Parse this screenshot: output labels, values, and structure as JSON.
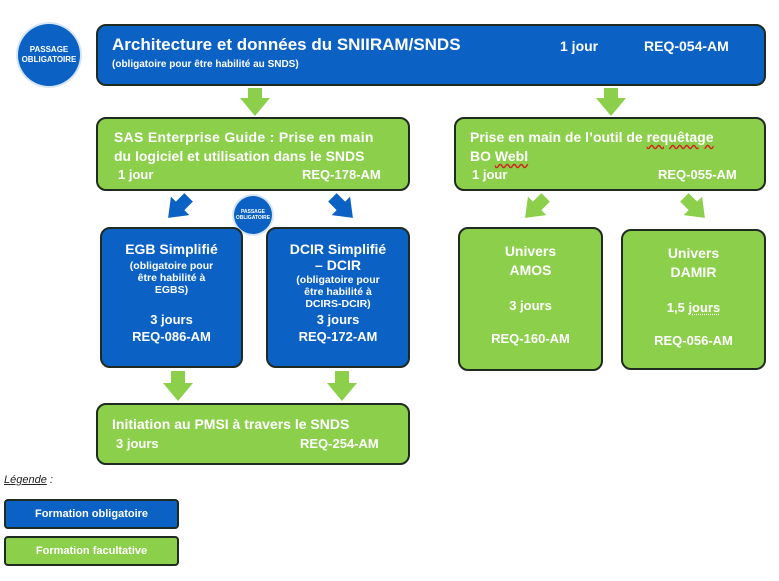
{
  "badges": {
    "main": [
      "PASSAGE",
      "OBLIGATOIRE"
    ],
    "small": [
      "PASSAGE",
      "OBLIGATOIRE"
    ]
  },
  "top": {
    "title": "Architecture et données du SNIIRAM/SNDS",
    "subtitle": "(obligatoire pour être habilité au SNDS)",
    "duration": "1 jour",
    "code": "REQ-054-AM"
  },
  "sas": {
    "line1": "SAS Enterprise Guide : Prise en main",
    "line2": "du logiciel et utilisation dans le SNDS",
    "duration": "1 jour",
    "code": "REQ-178-AM"
  },
  "bo": {
    "line1a": "Prise en main de l’outil de ",
    "line1b": "requêtage",
    "line2a": "BO ",
    "line2b": "Webl",
    "duration": "1 jour",
    "code": "REQ-055-AM"
  },
  "egb": {
    "title": "EGB Simplifié",
    "note1": "(obligatoire pour",
    "note2": "être habilité à",
    "note3": "EGBS)",
    "duration": "3 jours",
    "code": "REQ-086-AM"
  },
  "dcir": {
    "title1": "DCIR Simplifié",
    "title2": "– DCIR",
    "note1": "(obligatoire pour",
    "note2": "être habilité à",
    "note3": "DCIRS-DCIR)",
    "duration": "3 jours",
    "code": "REQ-172-AM"
  },
  "amos": {
    "title1": "Univers",
    "title2": "AMOS",
    "duration": "3 jours",
    "code": "REQ-160-AM"
  },
  "damir": {
    "title1": "Univers",
    "title2": "DAMIR",
    "duration_a": "1,5 ",
    "duration_b": "jours",
    "code": "REQ-056-AM"
  },
  "pmsi": {
    "title": "Initiation au PMSI à travers le SNDS",
    "duration": "3 jours",
    "code": "REQ-254-AM"
  },
  "legend": {
    "title": "Légende",
    "colon": " :",
    "mandatory": "Formation obligatoire",
    "optional": "Formation facultative"
  },
  "colors": {
    "blue": "#0b61c4",
    "green": "#8ccf4b",
    "arrow_green": "#8ccf4b",
    "arrow_blue": "#0b61c4"
  }
}
